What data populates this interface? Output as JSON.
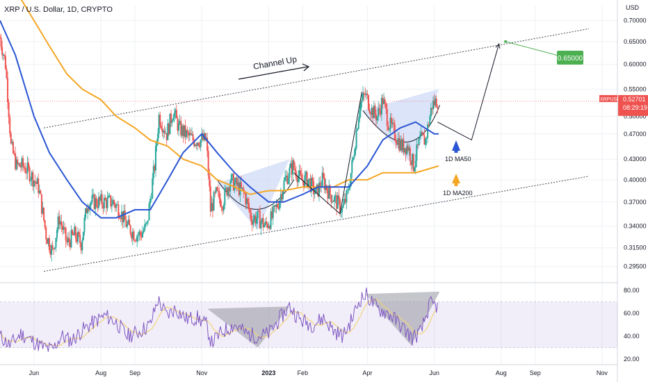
{
  "header": {
    "title": "XRP / U.S. Dollar, 1D, CRYPTO"
  },
  "axis": {
    "currency": "USD",
    "price_ticks": [
      "0.70000",
      "0.65000",
      "0.60000",
      "0.55000",
      "0.50000",
      "0.47000",
      "0.43000",
      "0.40000",
      "0.37000",
      "0.34000",
      "0.31500",
      "0.29500"
    ],
    "rsi_ticks": [
      "80.00",
      "60.00",
      "40.00",
      "20.00"
    ],
    "x_ticks": [
      "Jun",
      "Aug",
      "Sep",
      "Nov",
      "2023",
      "Feb",
      "Apr",
      "Jun",
      "Aug",
      "Sep",
      "Nov"
    ]
  },
  "current_price": {
    "symbol": "XRPUSD",
    "value": "0.52701",
    "countdown": "08:29:19",
    "color": "#ef5350"
  },
  "annotations": {
    "channel": "Channel Up",
    "ma50": "1D MA50",
    "ma200": "1D MA200",
    "target": "0.65000"
  },
  "colors": {
    "up": "#26a69a",
    "down": "#ef5350",
    "ma50": "#2a55d4",
    "ma200": "#f5a623",
    "rsi": "#7e57c2",
    "rsi_ma": "#f0d37a",
    "target": "#4caf50",
    "fill": "#cdd8f6"
  },
  "chart_data": [
    {
      "type": "candlestick",
      "title": "XRP / U.S. Dollar, 1D, CRYPTO",
      "y_scale": "log",
      "ylim": [
        0.28,
        0.72
      ],
      "x_range": [
        "2022-05-01",
        "2023-11-15"
      ],
      "series": [
        {
          "name": "XRPUSD",
          "path": [
            [
              "2022-05-01",
              0.66
            ],
            [
              "2022-05-06",
              0.6
            ],
            [
              "2022-05-11",
              0.45
            ],
            [
              "2022-05-16",
              0.42
            ],
            [
              "2022-05-22",
              0.42
            ],
            [
              "2022-05-28",
              0.41
            ],
            [
              "2022-06-05",
              0.39
            ],
            [
              "2022-06-12",
              0.33
            ],
            [
              "2022-06-18",
              0.31
            ],
            [
              "2022-06-24",
              0.35
            ],
            [
              "2022-07-01",
              0.32
            ],
            [
              "2022-07-08",
              0.33
            ],
            [
              "2022-07-14",
              0.32
            ],
            [
              "2022-07-20",
              0.37
            ],
            [
              "2022-07-28",
              0.37
            ],
            [
              "2022-08-05",
              0.37
            ],
            [
              "2022-08-12",
              0.37
            ],
            [
              "2022-08-18",
              0.36
            ],
            [
              "2022-08-25",
              0.34
            ],
            [
              "2022-09-01",
              0.33
            ],
            [
              "2022-09-06",
              0.33
            ],
            [
              "2022-09-12",
              0.34
            ],
            [
              "2022-09-19",
              0.42
            ],
            [
              "2022-09-23",
              0.5
            ],
            [
              "2022-09-30",
              0.47
            ],
            [
              "2022-10-06",
              0.51
            ],
            [
              "2022-10-11",
              0.48
            ],
            [
              "2022-10-17",
              0.47
            ],
            [
              "2022-10-24",
              0.46
            ],
            [
              "2022-10-31",
              0.46
            ],
            [
              "2022-11-05",
              0.46
            ],
            [
              "2022-11-09",
              0.36
            ],
            [
              "2022-11-14",
              0.38
            ],
            [
              "2022-11-20",
              0.37
            ],
            [
              "2022-11-27",
              0.4
            ],
            [
              "2022-12-04",
              0.39
            ],
            [
              "2022-12-10",
              0.38
            ],
            [
              "2022-12-16",
              0.35
            ],
            [
              "2022-12-22",
              0.35
            ],
            [
              "2022-12-29",
              0.34
            ],
            [
              "2023-01-04",
              0.35
            ],
            [
              "2023-01-10",
              0.37
            ],
            [
              "2023-01-16",
              0.4
            ],
            [
              "2023-01-23",
              0.42
            ],
            [
              "2023-01-30",
              0.4
            ],
            [
              "2023-02-06",
              0.4
            ],
            [
              "2023-02-13",
              0.38
            ],
            [
              "2023-02-19",
              0.4
            ],
            [
              "2023-02-26",
              0.38
            ],
            [
              "2023-03-04",
              0.37
            ],
            [
              "2023-03-09",
              0.36
            ],
            [
              "2023-03-14",
              0.38
            ],
            [
              "2023-03-19",
              0.43
            ],
            [
              "2023-03-25",
              0.52
            ],
            [
              "2023-03-30",
              0.54
            ],
            [
              "2023-04-05",
              0.51
            ],
            [
              "2023-04-10",
              0.5
            ],
            [
              "2023-04-15",
              0.53
            ],
            [
              "2023-04-20",
              0.49
            ],
            [
              "2023-04-26",
              0.47
            ],
            [
              "2023-05-02",
              0.45
            ],
            [
              "2023-05-08",
              0.45
            ],
            [
              "2023-05-13",
              0.42
            ],
            [
              "2023-05-19",
              0.46
            ],
            [
              "2023-05-24",
              0.46
            ],
            [
              "2023-05-30",
              0.52
            ],
            [
              "2023-06-04",
              0.53
            ]
          ]
        },
        {
          "name": "1D MA50",
          "path": [
            [
              "2022-05-01",
              0.7
            ],
            [
              "2022-05-15",
              0.62
            ],
            [
              "2022-06-01",
              0.5
            ],
            [
              "2022-06-15",
              0.44
            ],
            [
              "2022-07-01",
              0.4
            ],
            [
              "2022-07-15",
              0.37
            ],
            [
              "2022-08-01",
              0.35
            ],
            [
              "2022-08-15",
              0.35
            ],
            [
              "2022-09-01",
              0.36
            ],
            [
              "2022-09-15",
              0.36
            ],
            [
              "2022-10-01",
              0.4
            ],
            [
              "2022-10-15",
              0.44
            ],
            [
              "2022-11-01",
              0.47
            ],
            [
              "2022-11-15",
              0.44
            ],
            [
              "2022-12-01",
              0.41
            ],
            [
              "2022-12-15",
              0.39
            ],
            [
              "2023-01-01",
              0.37
            ],
            [
              "2023-01-15",
              0.37
            ],
            [
              "2023-02-01",
              0.38
            ],
            [
              "2023-02-15",
              0.39
            ],
            [
              "2023-03-01",
              0.39
            ],
            [
              "2023-03-15",
              0.39
            ],
            [
              "2023-04-01",
              0.42
            ],
            [
              "2023-04-15",
              0.46
            ],
            [
              "2023-05-01",
              0.48
            ],
            [
              "2023-05-15",
              0.49
            ],
            [
              "2023-06-01",
              0.47
            ],
            [
              "2023-06-05",
              0.47
            ]
          ]
        },
        {
          "name": "1D MA200",
          "path": [
            [
              "2022-05-01",
              0.85
            ],
            [
              "2022-05-15",
              0.78
            ],
            [
              "2022-06-01",
              0.7
            ],
            [
              "2022-06-15",
              0.64
            ],
            [
              "2022-07-01",
              0.58
            ],
            [
              "2022-07-15",
              0.55
            ],
            [
              "2022-08-01",
              0.53
            ],
            [
              "2022-08-15",
              0.5
            ],
            [
              "2022-09-01",
              0.48
            ],
            [
              "2022-09-15",
              0.46
            ],
            [
              "2022-10-01",
              0.45
            ],
            [
              "2022-10-15",
              0.43
            ],
            [
              "2022-11-01",
              0.42
            ],
            [
              "2022-11-15",
              0.4
            ],
            [
              "2022-12-01",
              0.39
            ],
            [
              "2022-12-15",
              0.38
            ],
            [
              "2023-01-01",
              0.385
            ],
            [
              "2023-01-15",
              0.385
            ],
            [
              "2023-02-01",
              0.39
            ],
            [
              "2023-02-15",
              0.39
            ],
            [
              "2023-03-01",
              0.39
            ],
            [
              "2023-03-15",
              0.4
            ],
            [
              "2023-04-01",
              0.4
            ],
            [
              "2023-04-15",
              0.41
            ],
            [
              "2023-05-01",
              0.41
            ],
            [
              "2023-05-15",
              0.41
            ],
            [
              "2023-06-05",
              0.42
            ]
          ]
        }
      ],
      "channel_lines": [
        {
          "name": "upper",
          "from": [
            "2022-06-10",
            0.48
          ],
          "to": [
            "2023-10-20",
            0.68
          ]
        },
        {
          "name": "lower",
          "from": [
            "2022-06-10",
            0.29
          ],
          "to": [
            "2023-10-20",
            0.405
          ]
        }
      ],
      "projection": [
        [
          "2023-06-04",
          0.49
        ],
        [
          "2023-07-05",
          0.46
        ],
        [
          "2023-07-30",
          0.645
        ]
      ],
      "target": {
        "x": "2023-08-05",
        "value": 0.65
      },
      "annotations": [
        "Channel Up",
        "1D MA50",
        "1D MA200",
        "0.65000"
      ]
    },
    {
      "type": "line",
      "name": "RSI",
      "ylim": [
        15,
        85
      ],
      "band": [
        30,
        70
      ],
      "series": [
        {
          "name": "RSI",
          "path": [
            [
              "2022-05-01",
              40
            ],
            [
              "2022-05-10",
              32
            ],
            [
              "2022-05-20",
              42
            ],
            [
              "2022-06-01",
              35
            ],
            [
              "2022-06-10",
              30
            ],
            [
              "2022-06-18",
              28
            ],
            [
              "2022-06-26",
              40
            ],
            [
              "2022-07-05",
              36
            ],
            [
              "2022-07-15",
              45
            ],
            [
              "2022-07-25",
              52
            ],
            [
              "2022-08-05",
              58
            ],
            [
              "2022-08-15",
              52
            ],
            [
              "2022-08-25",
              40
            ],
            [
              "2022-09-05",
              44
            ],
            [
              "2022-09-15",
              50
            ],
            [
              "2022-09-22",
              72
            ],
            [
              "2022-09-30",
              58
            ],
            [
              "2022-10-08",
              64
            ],
            [
              "2022-10-18",
              55
            ],
            [
              "2022-10-28",
              56
            ],
            [
              "2022-11-05",
              50
            ],
            [
              "2022-11-10",
              34
            ],
            [
              "2022-11-20",
              44
            ],
            [
              "2022-12-01",
              50
            ],
            [
              "2022-12-12",
              42
            ],
            [
              "2022-12-22",
              40
            ],
            [
              "2023-01-01",
              42
            ],
            [
              "2023-01-10",
              54
            ],
            [
              "2023-01-20",
              66
            ],
            [
              "2023-01-30",
              54
            ],
            [
              "2023-02-10",
              50
            ],
            [
              "2023-02-20",
              56
            ],
            [
              "2023-03-01",
              45
            ],
            [
              "2023-03-10",
              40
            ],
            [
              "2023-03-18",
              55
            ],
            [
              "2023-03-25",
              72
            ],
            [
              "2023-03-31",
              76
            ],
            [
              "2023-04-10",
              64
            ],
            [
              "2023-04-20",
              60
            ],
            [
              "2023-05-01",
              50
            ],
            [
              "2023-05-12",
              38
            ],
            [
              "2023-05-20",
              44
            ],
            [
              "2023-05-28",
              68
            ],
            [
              "2023-06-04",
              66
            ]
          ]
        }
      ]
    }
  ]
}
